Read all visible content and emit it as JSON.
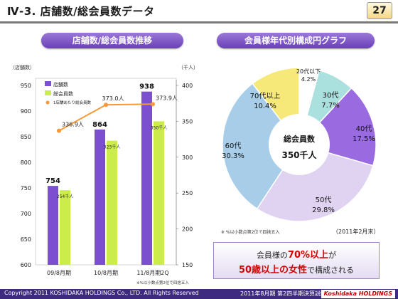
{
  "header": {
    "title": "Ⅳ-3. 店舗数/総会員数データ",
    "page": "27"
  },
  "left_section": {
    "title": "店舗数/総会員数推移",
    "note": "※%以小数点第2位で四捨五入"
  },
  "right_section": {
    "title": "会員様年代別構成円グラフ",
    "date": "（2011年2月末）",
    "note": "※ %以小数点第2位で四捨五入"
  },
  "callout": {
    "line1_pre": "会員様の",
    "line1_hl": "70%以上",
    "line1_post": "が",
    "line2_hl": "50歳以上の女性",
    "line2_post": "で構成される"
  },
  "footer": {
    "copyright": "Copyright 2011 KOSHIDAKA HOLDINGS Co., LTD. All Rights Reserved",
    "doc": "2011年8月期 第2四半期決算説明会資料",
    "logo": "Koshidaka HOLDINGS"
  },
  "colors": {
    "stores": "#7c4fd0",
    "members": "#ccec4a",
    "per_store": "#f59a3a",
    "header_bar": "#3e2a7e"
  },
  "chart_data": [
    {
      "type": "bar",
      "categories": [
        "09/8月期",
        "10/8月期",
        "11/8月期2Q"
      ],
      "y_left_unit": "（店舗数）",
      "y_right_unit": "（千人）",
      "ylim_left": [
        600,
        950
      ],
      "ylim_right": [
        150,
        400
      ],
      "yticks_left": [
        "600",
        "650",
        "700",
        "750",
        "800",
        "850",
        "900",
        "950"
      ],
      "yticks_right": [
        "150",
        "200",
        "250",
        "300",
        "350",
        "400"
      ],
      "series": [
        {
          "name": "店舗数",
          "axis": "left",
          "values": [
            754,
            864,
            938
          ],
          "labels": [
            "754",
            "864",
            "938"
          ]
        },
        {
          "name": "総会員数",
          "axis": "right",
          "values": [
            254,
            323,
            350
          ],
          "labels": [
            "254千人",
            "323千人",
            "350千人"
          ]
        },
        {
          "name": "1店舗あたり総会員数",
          "type": "line",
          "axis": "right",
          "values": [
            336.9,
            373.0,
            373.9
          ],
          "labels": [
            "336.9人",
            "373.0人",
            "373.9人"
          ]
        }
      ]
    },
    {
      "type": "pie",
      "center_label": {
        "line1": "総会員数",
        "line2": "350千人"
      },
      "slices": [
        {
          "name": "20代以下",
          "value": 4.2,
          "label": "4.2%",
          "color": "#ffffff"
        },
        {
          "name": "30代",
          "value": 7.7,
          "label": "7.7%",
          "color": "#aae0de"
        },
        {
          "name": "40代",
          "value": 17.5,
          "label": "17.5%",
          "color": "#9a6be0"
        },
        {
          "name": "50代",
          "value": 29.8,
          "label": "29.8%",
          "color": "#e0d3f2"
        },
        {
          "name": "60代",
          "value": 30.3,
          "label": "30.3%",
          "color": "#a7cde8"
        },
        {
          "name": "70代以上",
          "value": 10.4,
          "label": "10.4%",
          "color": "#f6e97a"
        }
      ]
    }
  ]
}
